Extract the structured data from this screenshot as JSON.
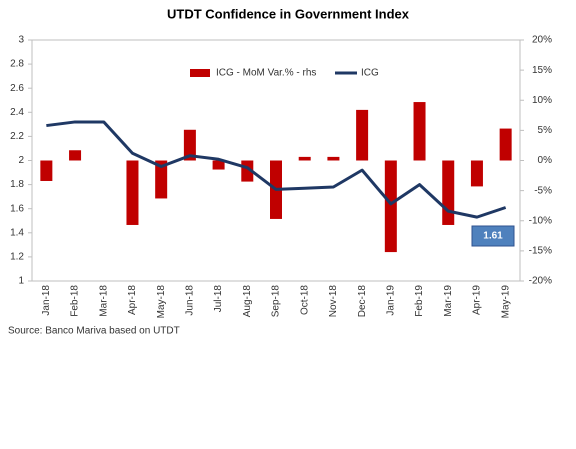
{
  "chart_data": {
    "type": "combo",
    "title": "UTDT Confidence in Government Index",
    "source": "Source: Banco Mariva based on UTDT",
    "categories": [
      "Jan-18",
      "Feb-18",
      "Mar-18",
      "Apr-18",
      "May-18",
      "Jun-18",
      "Jul-18",
      "Aug-18",
      "Sep-18",
      "Oct-18",
      "Nov-18",
      "Dec-18",
      "Jan-19",
      "Feb-19",
      "Mar-19",
      "Apr-19",
      "May-19"
    ],
    "series": [
      {
        "name": "ICG - MoM Var.% - rhs",
        "type": "bar",
        "axis": "y2",
        "color": "#c00000",
        "values": [
          -3.4,
          1.7,
          0,
          -10.7,
          -6.3,
          5.1,
          -1.5,
          -3.5,
          -9.7,
          0.6,
          0.6,
          8.4,
          -15.2,
          9.7,
          -10.7,
          -4.3,
          5.3
        ]
      },
      {
        "name": "ICG",
        "type": "line",
        "axis": "y",
        "color": "#1f3864",
        "values": [
          2.29,
          2.32,
          2.32,
          2.06,
          1.95,
          2.04,
          2.01,
          1.94,
          1.76,
          1.77,
          1.78,
          1.92,
          1.64,
          1.8,
          1.58,
          1.53,
          1.61
        ]
      }
    ],
    "ylim": [
      1,
      3
    ],
    "yticks": [
      1,
      1.2,
      1.4,
      1.6,
      1.8,
      2,
      2.2,
      2.4,
      2.6,
      2.8,
      3
    ],
    "y2lim": [
      -20,
      20
    ],
    "y2ticks": [
      {
        "value": -20,
        "label": "-20%"
      },
      {
        "value": -15,
        "label": "-15%"
      },
      {
        "value": -10,
        "label": "-10%"
      },
      {
        "value": -5,
        "label": "-5%"
      },
      {
        "value": 0,
        "label": "0%"
      },
      {
        "value": 5,
        "label": "5%"
      },
      {
        "value": 10,
        "label": "10%"
      },
      {
        "value": 15,
        "label": "15%"
      },
      {
        "value": 20,
        "label": "20%"
      }
    ],
    "callout_color": "#4f81bd",
    "legend": "top"
  }
}
